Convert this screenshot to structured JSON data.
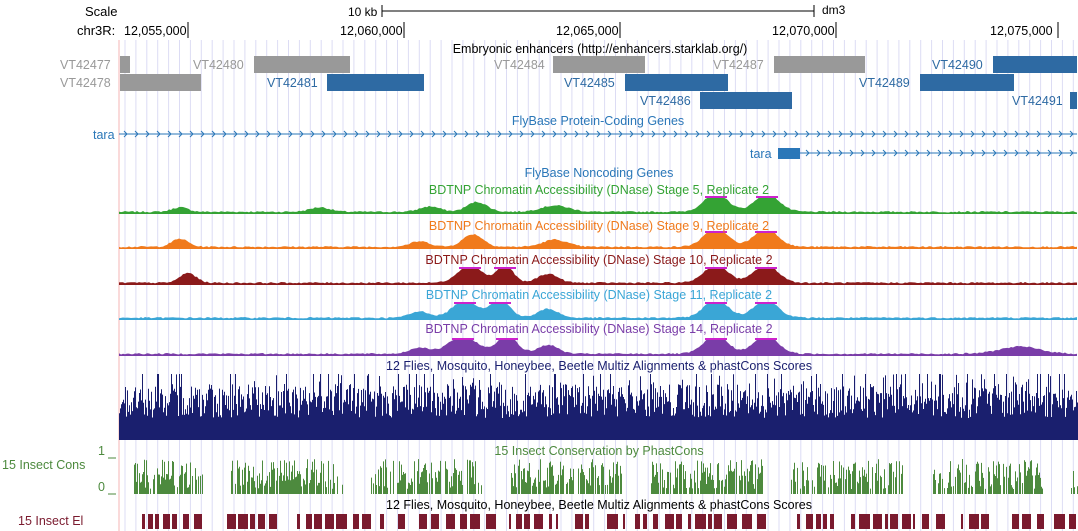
{
  "ruler": {
    "scale_label": "Scale",
    "scale_bar_label": "10 kb",
    "assembly": "dm3",
    "chrom_label": "chr3R:",
    "positions": [
      "12,055,000",
      "12,060,000",
      "12,065,000",
      "12,070,000",
      "12,075,000"
    ]
  },
  "enhancers": {
    "title": "Embryonic enhancers (http://enhancers.starklab.org/)",
    "colors": {
      "gray": "#999999",
      "blue": "#2e6aa3"
    },
    "items": [
      {
        "name": "VT42477",
        "color": "gray"
      },
      {
        "name": "VT42478",
        "color": "gray"
      },
      {
        "name": "VT42480",
        "color": "gray"
      },
      {
        "name": "VT42481",
        "color": "blue"
      },
      {
        "name": "VT42484",
        "color": "gray"
      },
      {
        "name": "VT42485",
        "color": "blue"
      },
      {
        "name": "VT42486",
        "color": "blue"
      },
      {
        "name": "VT42487",
        "color": "gray"
      },
      {
        "name": "VT42489",
        "color": "blue"
      },
      {
        "name": "VT42490",
        "color": "blue"
      },
      {
        "name": "VT42491",
        "color": "blue"
      }
    ]
  },
  "protein_genes": {
    "title": "FlyBase Protein-Coding Genes",
    "color": "#2a77b8",
    "gene_label": "tara",
    "transcript_label": "tara"
  },
  "noncoding": {
    "title": "FlyBase Noncoding Genes",
    "color": "#2a77b8"
  },
  "dnase": {
    "highlight_color": "#cc22cc",
    "tracks": [
      {
        "title": "BDTNP Chromatin Accessibility (DNase) Stage 5, Replicate 2",
        "color": "#34a334"
      },
      {
        "title": "BDTNP Chromatin Accessibility (DNase) Stage 9, Replicate 2",
        "color": "#f07a1c"
      },
      {
        "title": "BDTNP Chromatin Accessibility (DNase) Stage 10, Replicate 2",
        "color": "#8b1a1a"
      },
      {
        "title": "BDTNP Chromatin Accessibility (DNase) Stage 11, Replicate 2",
        "color": "#3aa6d6"
      },
      {
        "title": "BDTNP Chromatin Accessibility (DNase) Stage 14, Replicate 2",
        "color": "#7a3da8"
      }
    ]
  },
  "multiz": {
    "title": "12 Flies, Mosquito, Honeybee, Beetle Multiz Alignments & phastCons Scores",
    "color": "#1a1f6e"
  },
  "phastcons": {
    "title": "15 Insect Conservation by PhastCons",
    "left_label": "15 Insect Cons",
    "y_max": "1",
    "y_min": "0",
    "color": "#4d8a3e"
  },
  "elements": {
    "title": "12 Flies, Mosquito, Honeybee, Beetle Multiz Alignments & phastCons Scores",
    "left_label": "15 Insect El",
    "color": "#7a1a2e"
  }
}
